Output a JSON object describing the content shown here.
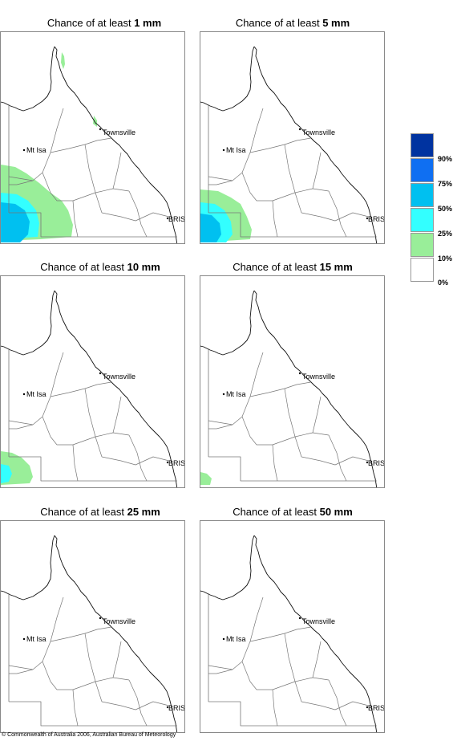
{
  "panels": [
    {
      "prefix": "Chance of at least ",
      "amount": "1 mm"
    },
    {
      "prefix": "Chance of at least ",
      "amount": "5 mm"
    },
    {
      "prefix": "Chance of at least ",
      "amount": "10 mm"
    },
    {
      "prefix": "Chance of at least ",
      "amount": "15 mm"
    },
    {
      "prefix": "Chance of at least ",
      "amount": "25 mm"
    },
    {
      "prefix": "Chance of at least ",
      "amount": "50 mm"
    }
  ],
  "places": {
    "townsville": "Townsville",
    "mt_isa": "Mt Isa",
    "brisbane": "BRIS"
  },
  "legend": {
    "labels": [
      "90%",
      "75%",
      "50%",
      "25%",
      "10%",
      "0%"
    ],
    "colors": [
      "#0033a0",
      "#0f6ff2",
      "#00c0f0",
      "#33ffff",
      "#99ee99",
      "#ffffff"
    ]
  },
  "copyright": "© Commonwealth of Australia 2006, Australian Bureau of Meteorology"
}
